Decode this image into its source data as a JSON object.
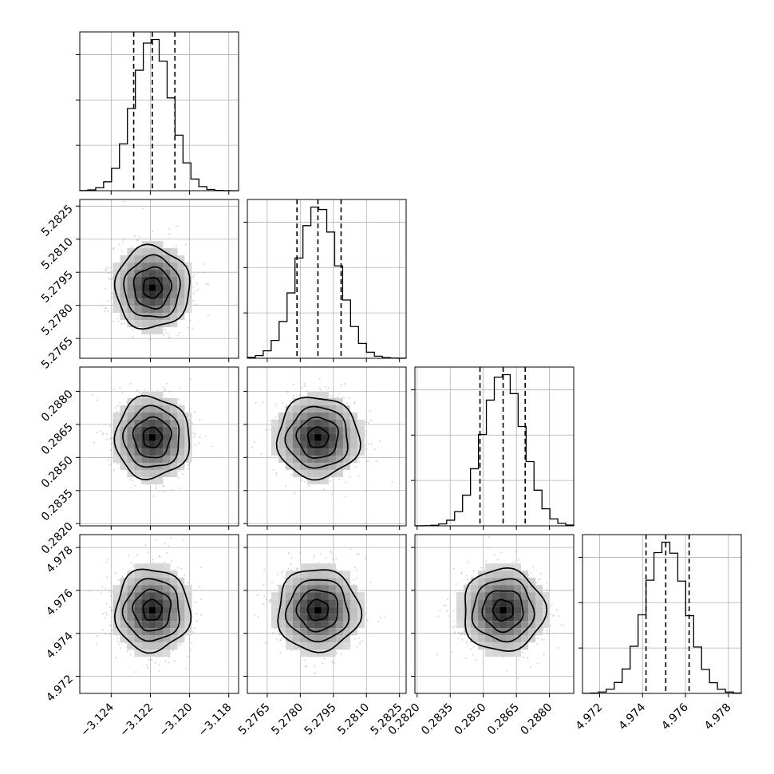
{
  "chart_data": {
    "type": "corner",
    "grid": true,
    "parameters": [
      {
        "mean": -3.1219,
        "sigma": 0.00095,
        "range": [
          -3.1256,
          -3.1175
        ],
        "quantiles": [
          -3.12285,
          -3.1219,
          -3.12075
        ],
        "ticks": [
          -3.124,
          -3.122,
          -3.12,
          -3.118
        ],
        "tick_labels": [
          "−3.124",
          "−3.122",
          "−3.120",
          "−3.118"
        ]
      },
      {
        "mean": 5.2788,
        "sigma": 0.00093,
        "range": [
          5.2756,
          5.2828
        ],
        "quantiles": [
          5.27785,
          5.2788,
          5.27985
        ],
        "ticks": [
          5.2765,
          5.278,
          5.2795,
          5.281,
          5.2825
        ],
        "tick_labels": [
          "5.2765",
          "5.2780",
          "5.2795",
          "5.2810",
          "5.2825"
        ]
      },
      {
        "mean": 0.2859,
        "sigma": 0.00092,
        "range": [
          0.2819,
          0.2891
        ],
        "quantiles": [
          0.28485,
          0.2859,
          0.2869
        ],
        "ticks": [
          0.282,
          0.2835,
          0.285,
          0.2865,
          0.288
        ],
        "tick_labels": [
          "0.2820",
          "0.2835",
          "0.2850",
          "0.2865",
          "0.2880"
        ]
      },
      {
        "mean": 4.97508,
        "sigma": 0.00096,
        "range": [
          4.9712,
          4.9786
        ],
        "quantiles": [
          4.97416,
          4.97508,
          4.97617
        ],
        "ticks": [
          4.972,
          4.974,
          4.976,
          4.978
        ],
        "tick_labels": [
          "4.972",
          "4.974",
          "4.976",
          "4.978"
        ]
      }
    ],
    "histogram_bins": 20,
    "contour_levels": [
      0.5,
      1.0,
      1.5,
      2.0
    ]
  }
}
